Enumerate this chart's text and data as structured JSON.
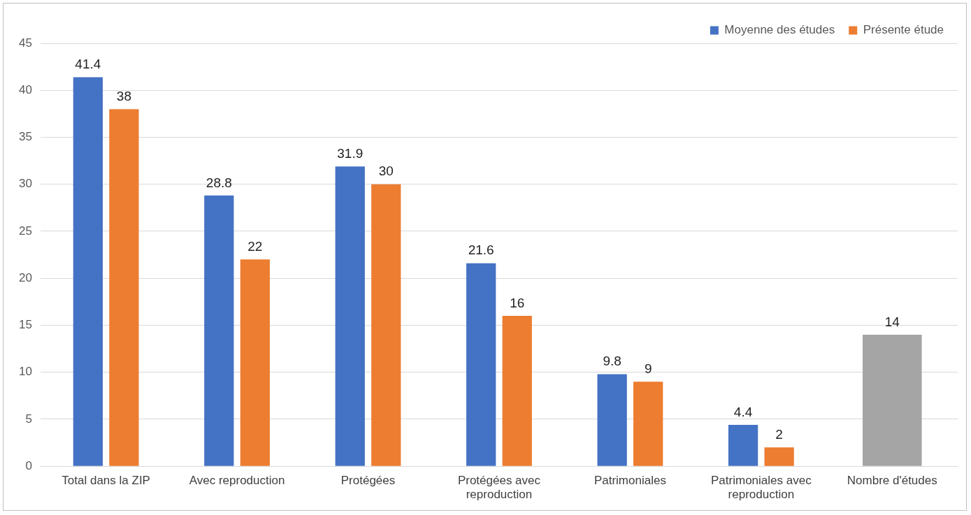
{
  "chart_data": {
    "type": "bar",
    "categories": [
      "Total dans la ZIP",
      "Avec reproduction",
      "Protégées",
      "Protégées avec reproduction",
      "Patrimoniales",
      "Patrimoniales avec reproduction",
      "Nombre d'études"
    ],
    "series": [
      {
        "name": "Moyenne des études",
        "color": "#4472c4",
        "values": [
          41.4,
          28.8,
          31.9,
          21.6,
          9.8,
          4.4,
          null
        ]
      },
      {
        "name": "Présente étude",
        "color": "#ed7d31",
        "values": [
          38,
          22,
          30,
          16,
          9,
          2,
          null
        ]
      },
      {
        "color": "#a5a5a5",
        "values": [
          null,
          null,
          null,
          null,
          null,
          null,
          14
        ]
      }
    ],
    "ylim": [
      0,
      45
    ],
    "yticks": [
      0,
      5,
      10,
      15,
      20,
      25,
      30,
      35,
      40,
      45
    ],
    "grid": "y",
    "legend": "top right",
    "data_labels": true
  }
}
